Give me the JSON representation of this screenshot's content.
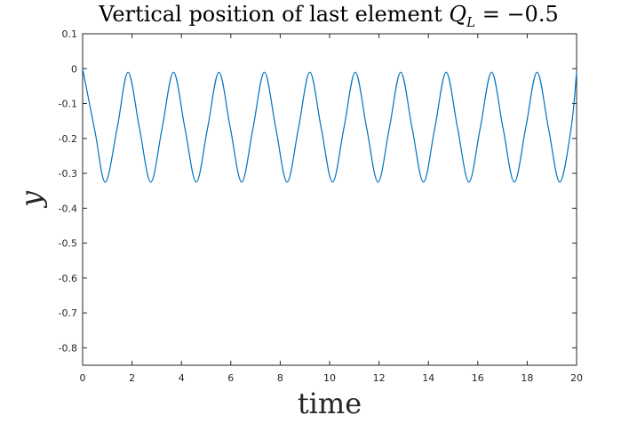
{
  "chart_data": {
    "type": "line",
    "title": "Vertical position of last element ",
    "title_math": {
      "q": "Q",
      "sub": "L",
      "rest": " = −0.5"
    },
    "xlabel": "time",
    "ylabel": "y",
    "xlim": [
      0,
      20
    ],
    "ylim": [
      -0.85,
      0.1
    ],
    "x_ticks": [
      0,
      2,
      4,
      6,
      8,
      10,
      12,
      14,
      16,
      18,
      20
    ],
    "x_tick_labels": [
      "0",
      "2",
      "4",
      "6",
      "8",
      "10",
      "12",
      "14",
      "16",
      "18",
      "20"
    ],
    "y_ticks": [
      0.1,
      0,
      -0.1,
      -0.2,
      -0.3,
      -0.4,
      -0.5,
      -0.6,
      -0.7,
      -0.8
    ],
    "y_tick_labels": [
      "0.1",
      "0",
      "-0.1",
      "-0.2",
      "-0.3",
      "-0.4",
      "-0.5",
      "-0.6",
      "-0.7",
      "-0.8"
    ],
    "grid": false,
    "box": true,
    "series": [
      {
        "color": "#0072BD",
        "x": [
          0,
          0.5,
          0.92,
          1.4,
          1.84,
          2.3,
          2.76,
          3.22,
          3.68,
          4.14,
          4.6,
          5.06,
          5.52,
          5.98,
          6.44,
          6.9,
          7.36,
          7.82,
          8.28,
          8.74,
          9.2,
          9.66,
          10.12,
          10.58,
          11.04,
          11.5,
          11.96,
          12.42,
          12.88,
          13.34,
          13.8,
          14.26,
          14.72,
          15.18,
          15.64,
          16.1,
          16.56,
          17.02,
          17.48,
          17.94,
          18.4,
          18.86,
          19.32,
          19.78,
          20
        ],
        "y": [
          0,
          -0.18,
          -0.325,
          -0.17,
          -0.01,
          -0.17,
          -0.325,
          -0.17,
          -0.01,
          -0.17,
          -0.325,
          -0.17,
          -0.01,
          -0.17,
          -0.325,
          -0.17,
          -0.01,
          -0.17,
          -0.325,
          -0.17,
          -0.01,
          -0.17,
          -0.325,
          -0.17,
          -0.01,
          -0.17,
          -0.325,
          -0.17,
          -0.01,
          -0.17,
          -0.325,
          -0.17,
          -0.01,
          -0.17,
          -0.325,
          -0.17,
          -0.01,
          -0.17,
          -0.325,
          -0.17,
          -0.01,
          -0.17,
          -0.325,
          -0.17,
          -0.01
        ]
      }
    ]
  }
}
